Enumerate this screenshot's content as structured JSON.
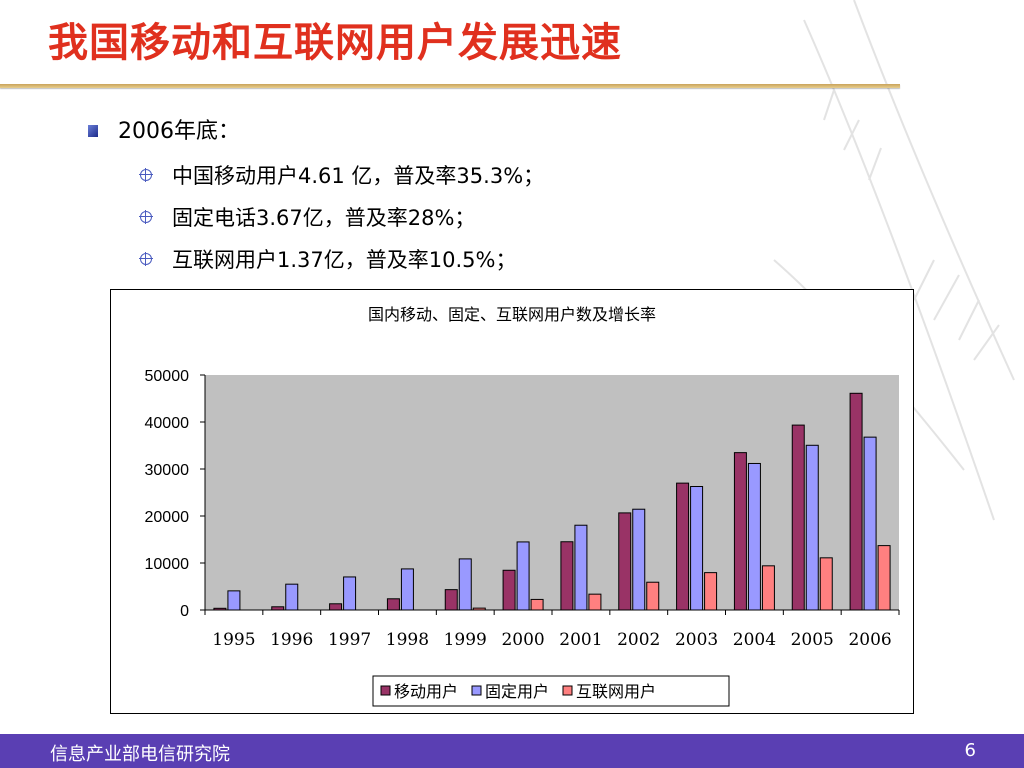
{
  "slide": {
    "title": "我国移动和互联网用户发展迅速"
  },
  "bullets": {
    "heading": "2006年底：",
    "items": [
      "中国移动用户4.61 亿，普及率35.3%；",
      "固定电话3.67亿，普及率28%；",
      "互联网用户1.37亿，普及率10.5%；"
    ]
  },
  "footer": {
    "org": "信息产业部电信研究院",
    "page": "6"
  },
  "colors": {
    "title": "#e0301e",
    "footer_bg": "#5a3fb3",
    "plot_bg": "#c0c0c0",
    "mobile": "#993366",
    "fixed": "#9999ff",
    "internet": "#ff8080"
  },
  "chart_data": {
    "type": "bar",
    "title": "国内移动、固定、互联网用户数及增长率",
    "categories": [
      "1995",
      "1996",
      "1997",
      "1998",
      "1999",
      "2000",
      "2001",
      "2002",
      "2003",
      "2004",
      "2005",
      "2006"
    ],
    "series": [
      {
        "name": "移动用户",
        "color": "#993366",
        "values": [
          363,
          685,
          1323,
          2386,
          4330,
          8453,
          14522,
          20661,
          26995,
          33482,
          39341,
          46108
        ]
      },
      {
        "name": "固定用户",
        "color": "#9999ff",
        "values": [
          4071,
          5495,
          7031,
          8742,
          10872,
          14483,
          18037,
          21442,
          26275,
          31176,
          35045,
          36779
        ]
      },
      {
        "name": "互联网用户",
        "color": "#ff8080",
        "values": [
          0,
          0,
          0,
          0,
          400,
          2250,
          3370,
          5910,
          7950,
          9400,
          11100,
          13700
        ]
      }
    ],
    "yticks": [
      0,
      10000,
      20000,
      30000,
      40000,
      50000
    ],
    "ylim": [
      0,
      50000
    ],
    "grid": false,
    "legend_position": "bottom"
  }
}
